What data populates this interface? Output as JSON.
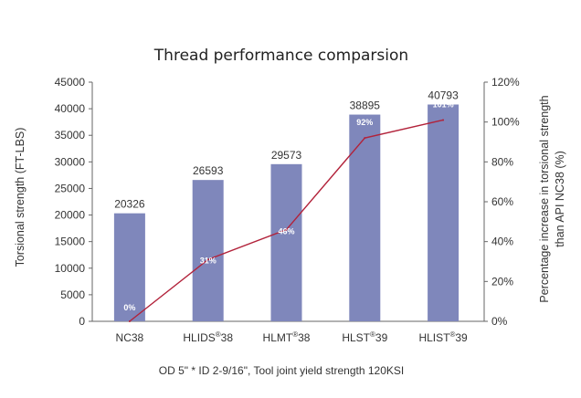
{
  "chart_data": {
    "type": "bar",
    "title": "Thread performance comparsion",
    "ylabel": "Torsional strength (FT-LBS)",
    "y2label_lines": [
      "Percentage increase in torsional strength",
      "than API NC38 (%)"
    ],
    "xlabel_note": "OD 5\" * ID 2-9/16\", Tool joint yield strength 120KSI",
    "ylim": [
      0,
      45000
    ],
    "yticks": [
      "0",
      "5000",
      "10000",
      "15000",
      "20000",
      "25000",
      "30000",
      "35000",
      "40000",
      "45000"
    ],
    "y2lim": [
      0,
      120
    ],
    "y2ticks": [
      "0%",
      "20%",
      "40%",
      "60%",
      "80%",
      "100%",
      "120%"
    ],
    "categories": [
      {
        "base": "NC38",
        "sup": "",
        "tail": ""
      },
      {
        "base": "HLIDS",
        "sup": "®",
        "tail": "38"
      },
      {
        "base": "HLMT",
        "sup": "®",
        "tail": "38"
      },
      {
        "base": "HLST",
        "sup": "®",
        "tail": "39"
      },
      {
        "base": "HLIST",
        "sup": "®",
        "tail": "39"
      }
    ],
    "series": [
      {
        "type": "bar",
        "values": [
          20326,
          26593,
          29573,
          38895,
          40793
        ],
        "labels": [
          "20326",
          "26593",
          "29573",
          "38895",
          "40793"
        ],
        "color": "#7f87bb"
      },
      {
        "type": "line",
        "values": [
          0,
          31,
          46,
          92,
          101
        ],
        "labels": [
          "0%",
          "31%",
          "46%",
          "92%",
          "101%"
        ],
        "color": "#b2223a"
      }
    ],
    "grid": false
  }
}
